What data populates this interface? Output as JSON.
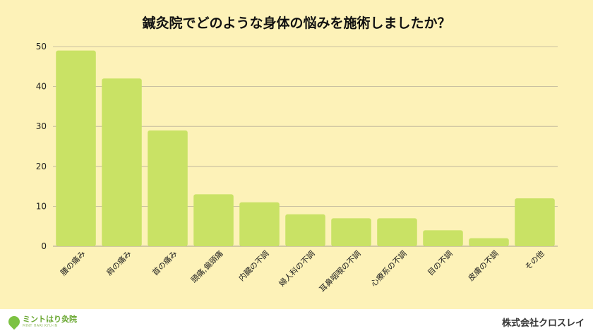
{
  "chart_data": {
    "type": "bar",
    "title": "鍼灸院でどのような身体の悩みを施術しましたか？",
    "xlabel": "",
    "ylabel": "",
    "categories": [
      "腰の痛み",
      "肩の痛み",
      "首の痛み",
      "頭痛,偏頭痛",
      "内臓の不調",
      "婦人科の不調",
      "耳鼻咽喉の不調",
      "心療系の不調",
      "目の不調",
      "皮膚の不調",
      "その他"
    ],
    "values": [
      49,
      42,
      29,
      13,
      11,
      8,
      7,
      7,
      4,
      2,
      12
    ],
    "ylim": [
      0,
      50
    ],
    "yticks": [
      0,
      10,
      20,
      30,
      40,
      50
    ],
    "grid": true,
    "bar_color": "#c9e265",
    "grid_color": "#b8b098"
  },
  "footer": {
    "logo_name": "ミントはり灸院",
    "logo_sub": "MINT HARI KYU-IN",
    "company": "株式会社クロスレイ",
    "logo_color": "#7cc242"
  }
}
